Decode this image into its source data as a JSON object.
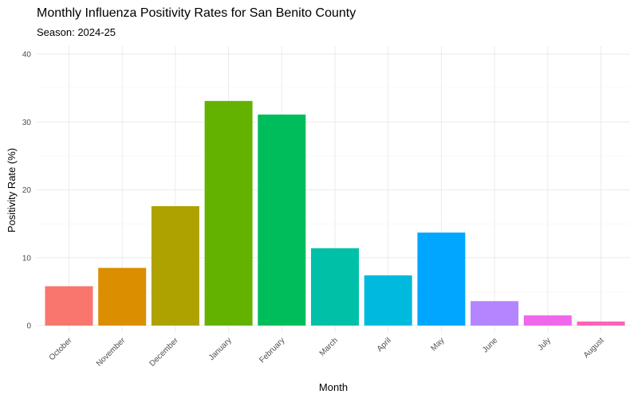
{
  "chart_data": {
    "type": "bar",
    "title": "Monthly Influenza Positivity Rates for San Benito County",
    "subtitle": "Season: 2024-25",
    "xlabel": "Month",
    "ylabel": "Positivity Rate (%)",
    "categories": [
      "October",
      "November",
      "December",
      "January",
      "February",
      "March",
      "April",
      "May",
      "June",
      "July",
      "August"
    ],
    "values": [
      5.8,
      8.5,
      17.6,
      33.1,
      31.1,
      11.4,
      7.4,
      13.7,
      3.6,
      1.5,
      0.6
    ],
    "colors": [
      "#F8766D",
      "#DB8E00",
      "#AEA200",
      "#64B200",
      "#00BD5C",
      "#00C1A7",
      "#00BADE",
      "#00A6FF",
      "#B385FF",
      "#EF67EB",
      "#FF63B6"
    ],
    "ylim": [
      0,
      40
    ],
    "yticks": [
      "0",
      "10",
      "20",
      "30",
      "40"
    ],
    "grid": true,
    "legend": "none"
  }
}
